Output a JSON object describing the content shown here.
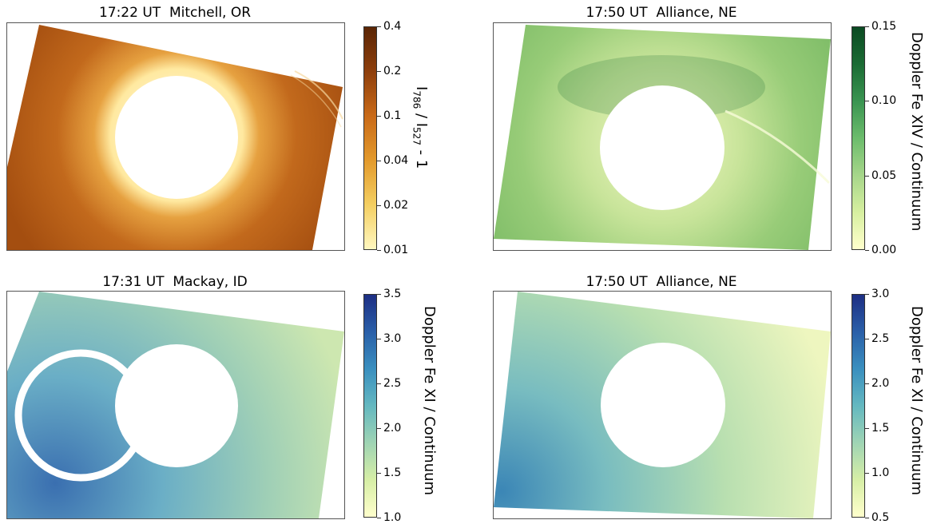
{
  "panels": [
    {
      "title": "17:22 UT  Mitchell, OR",
      "colorbar": {
        "label_main": "I",
        "label_sub1": "786",
        "label_mid": " / I",
        "label_sub2": "527",
        "label_tail": " - 1",
        "ticks": [
          "0.4",
          "0.2",
          "0.1",
          "0.04",
          "0.02",
          "0.01"
        ],
        "colors": [
          "#fff7bf",
          "#f4cf62",
          "#e39a2c",
          "#c96a18",
          "#8e3f0c",
          "#5a2505"
        ]
      }
    },
    {
      "title": "17:50 UT  Alliance, NE",
      "colorbar": {
        "label": "Doppler Fe XIV / Continuum",
        "ticks": [
          "0.15",
          "0.10",
          "0.05",
          "0.00"
        ],
        "colors": [
          "#ffffcc",
          "#d6efa0",
          "#a6d68a",
          "#6cbc6c",
          "#3a9451",
          "#1b6b34",
          "#0b4a22"
        ]
      }
    },
    {
      "title": "17:31 UT  Mackay, ID",
      "colorbar": {
        "label": "Doppler Fe XI / Continuum",
        "ticks": [
          "3.5",
          "3.0",
          "2.5",
          "2.0",
          "1.5",
          "1.0"
        ],
        "colors": [
          "#ffffcc",
          "#d6eea6",
          "#9fd4b4",
          "#64b8c0",
          "#3a8fbf",
          "#2a5fa8",
          "#1d2e83"
        ]
      }
    },
    {
      "title": "17:50 UT  Alliance, NE",
      "colorbar": {
        "label": "Doppler Fe XI / Continuum",
        "ticks": [
          "3.0",
          "2.5",
          "2.0",
          "1.5",
          "1.0",
          "0.5"
        ],
        "colors": [
          "#ffffcc",
          "#d6eea6",
          "#9fd4b4",
          "#64b8c0",
          "#3a8fbf",
          "#2a5fa8",
          "#1d2e83"
        ]
      }
    }
  ]
}
